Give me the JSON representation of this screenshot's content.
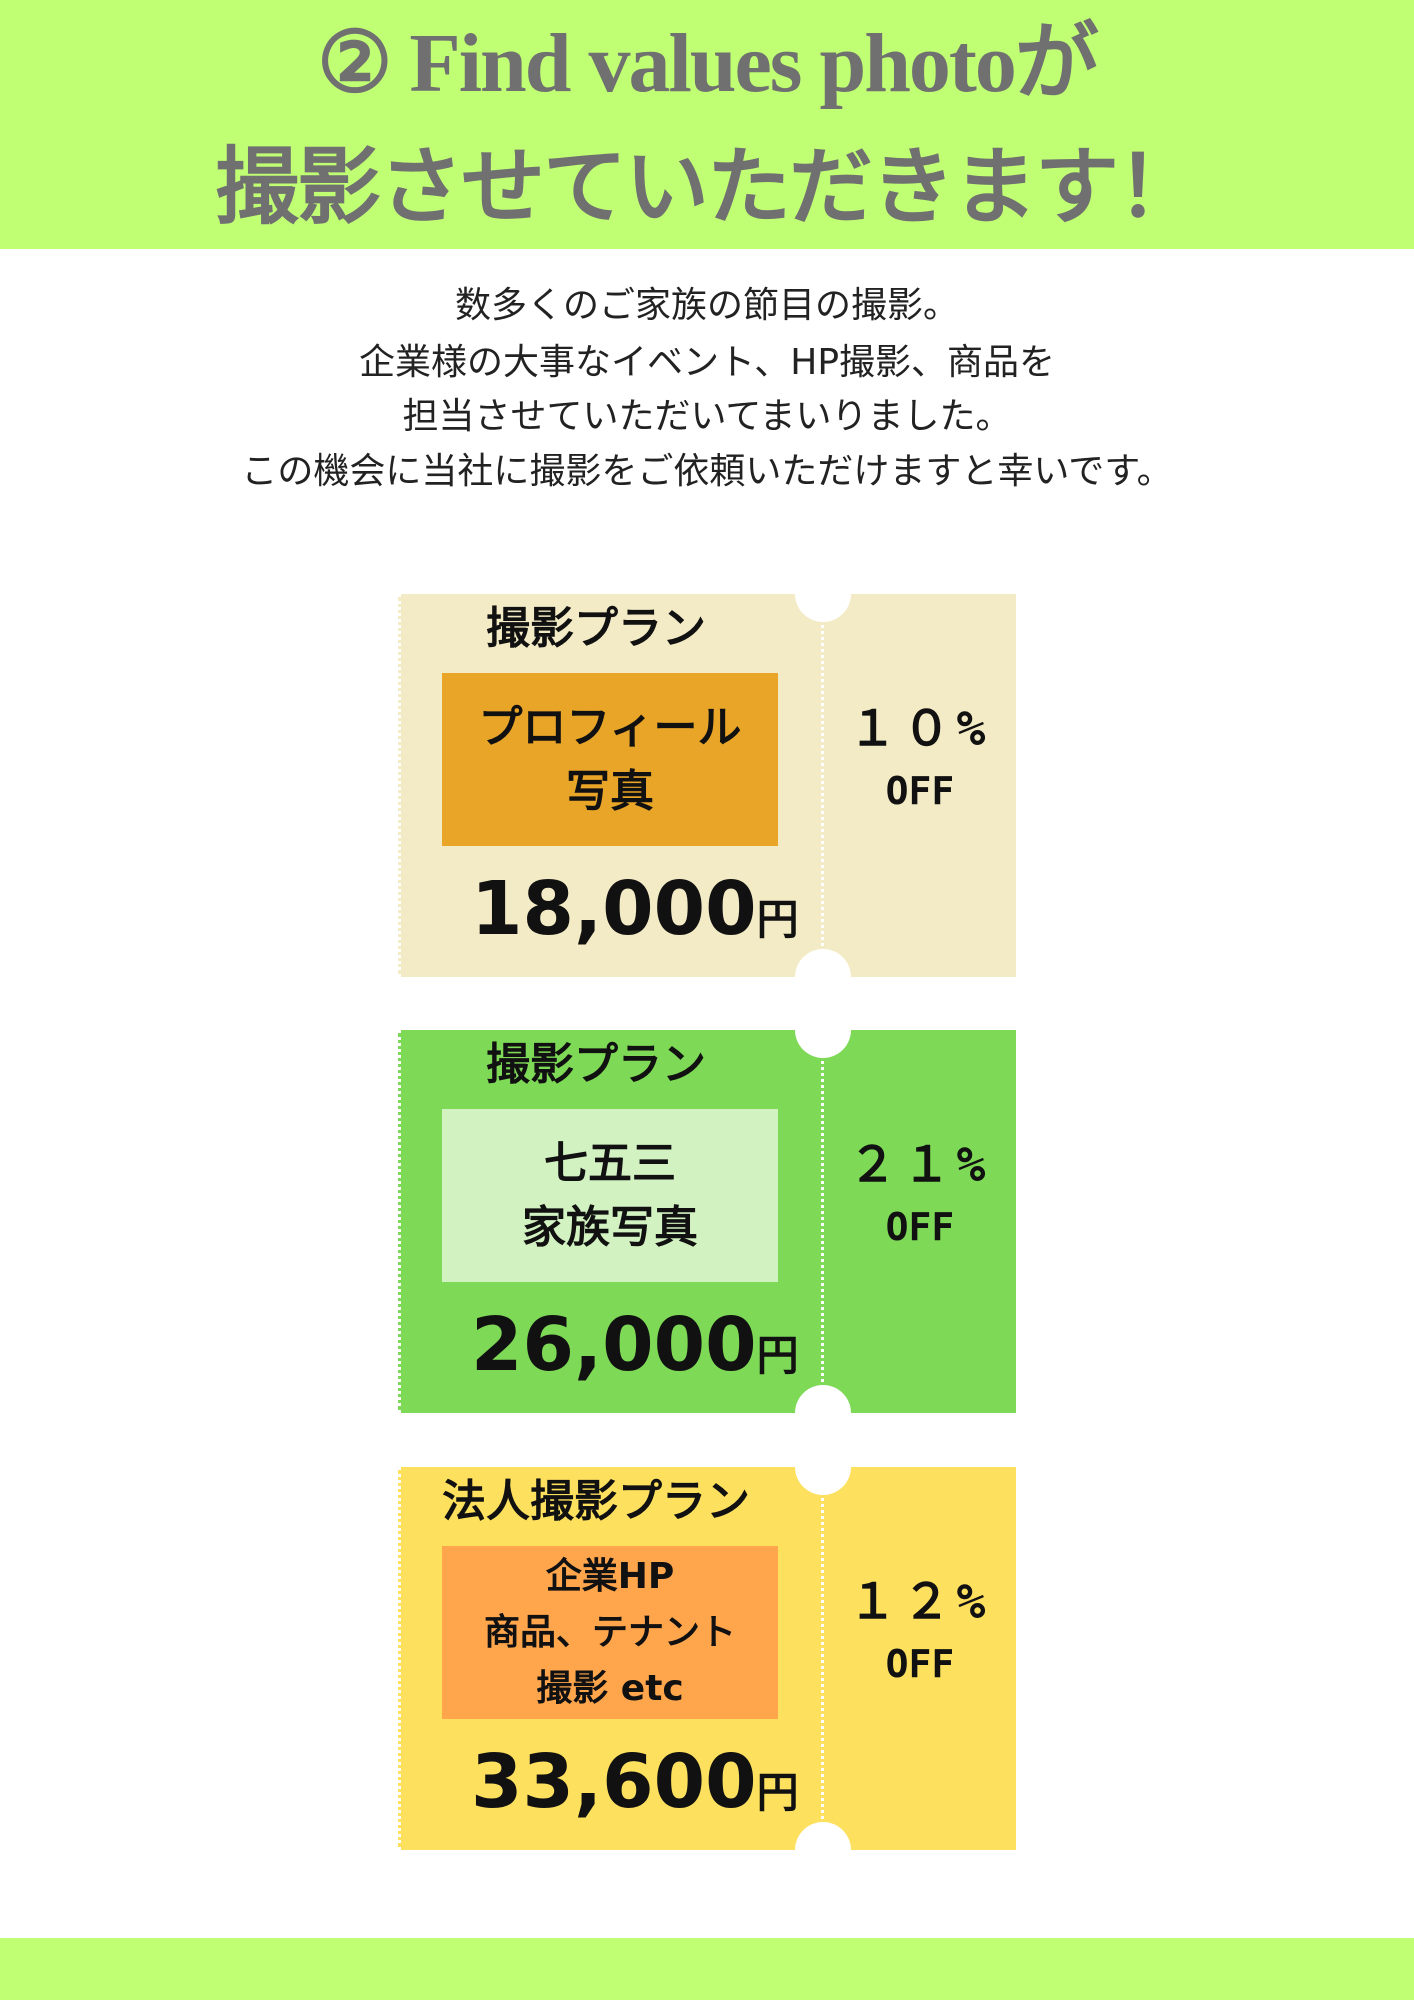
{
  "header": {
    "title": [
      "② Find values photoが",
      "撮影させていただきます！"
    ]
  },
  "intro": {
    "lines": [
      "数多くのご家族の節目の撮影。",
      "企業様の大事なイベント、HP撮影、商品を",
      "担当させていただいてまいりました。",
      "この機会に当社に撮影をご依頼いただけますと幸いです。"
    ]
  },
  "tickets": [
    {
      "heading": "撮影プラン",
      "plan": [
        "プロフィール",
        "写真"
      ],
      "price": "18,000",
      "currency": "円",
      "discount": "１０%",
      "off": "OFF"
    },
    {
      "heading": "撮影プラン",
      "plan": [
        "七五三",
        "家族写真"
      ],
      "price": "26,000",
      "currency": "円",
      "discount": "２１%",
      "off": "OFF"
    },
    {
      "heading": "法人撮影プラン",
      "plan": [
        "企業HP",
        "商品、テナント",
        "撮影  etc"
      ],
      "price": "33,600",
      "currency": "円",
      "discount": "１２%",
      "off": "OFF"
    }
  ]
}
